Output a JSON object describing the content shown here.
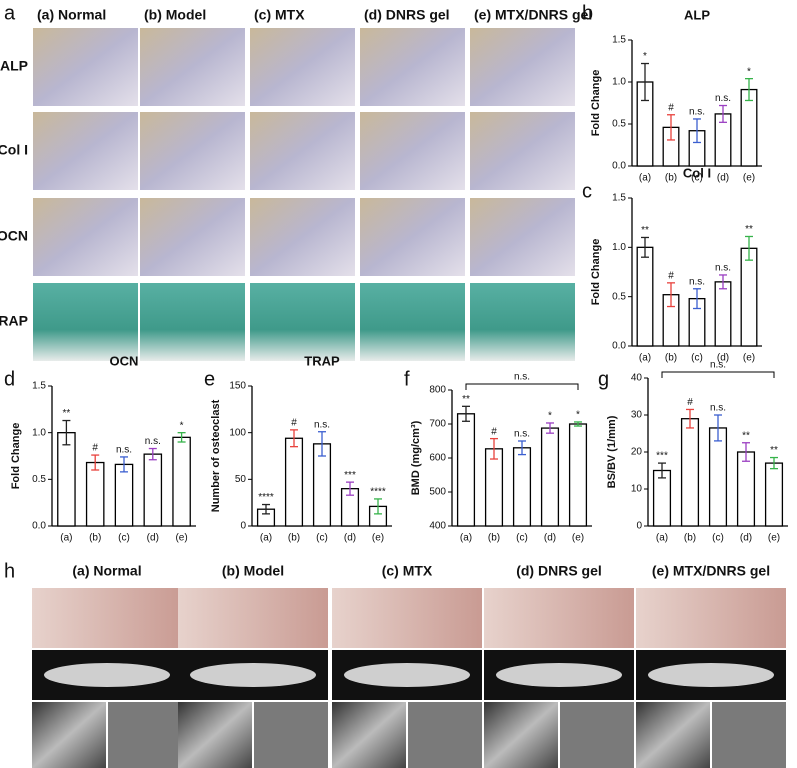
{
  "image_panel_a": {
    "letter": "a",
    "columns": [
      "(a)  Normal",
      "(b) Model",
      "(c)  MTX",
      "(d)  DNRS gel",
      "(e)  MTX/DNRS gel"
    ],
    "rows": [
      "ALP",
      "Col I",
      "OCN",
      "TRAP"
    ]
  },
  "image_panel_h": {
    "letter": "h",
    "columns": [
      "(a) Normal",
      "(b) Model",
      "(c) MTX",
      "(d) DNRS gel",
      "(e) MTX/DNRS gel"
    ]
  },
  "chart_data": [
    {
      "type": "bar",
      "panel": "b",
      "title": "ALP",
      "y_label": "Fold Change",
      "categories": [
        "(a)",
        "(b)",
        "(c)",
        "(d)",
        "(e)"
      ],
      "values": [
        1.0,
        0.46,
        0.42,
        0.62,
        0.91
      ],
      "errors": [
        0.22,
        0.15,
        0.14,
        0.1,
        0.13
      ],
      "annotations": [
        "*",
        "#",
        "n.s.",
        "n.s.",
        "*"
      ],
      "colors": [
        "#222222",
        "#e8413c",
        "#3b5fd0",
        "#9b3fc2",
        "#36b34a"
      ],
      "ylim": [
        0,
        1.5
      ],
      "yticks": [
        {
          "value": 0,
          "label": "0.0"
        },
        0.5,
        {
          "value": 1,
          "label": "1.0"
        },
        1.5
      ]
    },
    {
      "type": "bar",
      "panel": "c",
      "title": "Col I",
      "y_label": "Fold Change",
      "categories": [
        "(a)",
        "(b)",
        "(c)",
        "(d)",
        "(e)"
      ],
      "values": [
        1.0,
        0.52,
        0.48,
        0.65,
        0.99
      ],
      "errors": [
        0.1,
        0.12,
        0.1,
        0.07,
        0.12
      ],
      "annotations": [
        "**",
        "#",
        "n.s.",
        "n.s.",
        "**"
      ],
      "colors": [
        "#222222",
        "#e8413c",
        "#3b5fd0",
        "#9b3fc2",
        "#36b34a"
      ],
      "ylim": [
        0,
        1.5
      ],
      "yticks": [
        {
          "value": 0,
          "label": "0.0"
        },
        0.5,
        {
          "value": 1,
          "label": "1.0"
        },
        1.5
      ]
    },
    {
      "type": "bar",
      "panel": "d",
      "title": "OCN",
      "y_label": "Fold Change",
      "categories": [
        "(a)",
        "(b)",
        "(c)",
        "(d)",
        "(e)"
      ],
      "values": [
        1.0,
        0.68,
        0.66,
        0.77,
        0.95
      ],
      "errors": [
        0.13,
        0.08,
        0.08,
        0.06,
        0.05
      ],
      "annotations": [
        "**",
        "#",
        "n.s.",
        "n.s.",
        "*"
      ],
      "colors": [
        "#222222",
        "#e8413c",
        "#3b5fd0",
        "#9b3fc2",
        "#36b34a"
      ],
      "ylim": [
        0,
        1.5
      ],
      "yticks": [
        {
          "value": 0,
          "label": "0.0"
        },
        0.5,
        {
          "value": 1,
          "label": "1.0"
        },
        1.5
      ]
    },
    {
      "type": "bar",
      "panel": "e",
      "title": "TRAP",
      "y_label": "Number of osteoclast",
      "categories": [
        "(a)",
        "(b)",
        "(c)",
        "(d)",
        "(e)"
      ],
      "values": [
        18,
        94,
        88,
        40,
        21
      ],
      "errors": [
        5,
        9,
        13,
        7,
        8
      ],
      "annotations": [
        "****",
        "#",
        "n.s.",
        "***",
        "****"
      ],
      "colors": [
        "#222222",
        "#e8413c",
        "#3b5fd0",
        "#9b3fc2",
        "#36b34a"
      ],
      "ylim": [
        0,
        150
      ],
      "yticks": [
        0,
        50,
        100,
        150
      ]
    },
    {
      "type": "bar",
      "panel": "f",
      "y_label": "BMD (mg/cm³)",
      "comparison_label": "n.s.",
      "categories": [
        "(a)",
        "(b)",
        "(c)",
        "(d)",
        "(e)"
      ],
      "values": [
        730,
        627,
        630,
        688,
        700
      ],
      "errors": [
        22,
        30,
        20,
        15,
        6
      ],
      "annotations": [
        "**",
        "#",
        "n.s.",
        "*",
        "*"
      ],
      "colors": [
        "#222222",
        "#e8413c",
        "#3b5fd0",
        "#9b3fc2",
        "#36b34a"
      ],
      "ylim": [
        400,
        800
      ],
      "yticks": [
        400,
        500,
        600,
        700,
        800
      ]
    },
    {
      "type": "bar",
      "panel": "g",
      "y_label": "BS/BV (1/mm)",
      "comparison_label": "n.s.",
      "categories": [
        "(a)",
        "(b)",
        "(c)",
        "(d)",
        "(e)"
      ],
      "values": [
        15,
        29,
        26.5,
        20,
        17
      ],
      "errors": [
        2,
        2.5,
        3.5,
        2.5,
        1.5
      ],
      "annotations": [
        "***",
        "#",
        "n.s.",
        "**",
        "**"
      ],
      "colors": [
        "#222222",
        "#e8413c",
        "#3b5fd0",
        "#9b3fc2",
        "#36b34a"
      ],
      "ylim": [
        0,
        40
      ],
      "yticks": [
        0,
        10,
        20,
        30,
        40
      ]
    }
  ]
}
